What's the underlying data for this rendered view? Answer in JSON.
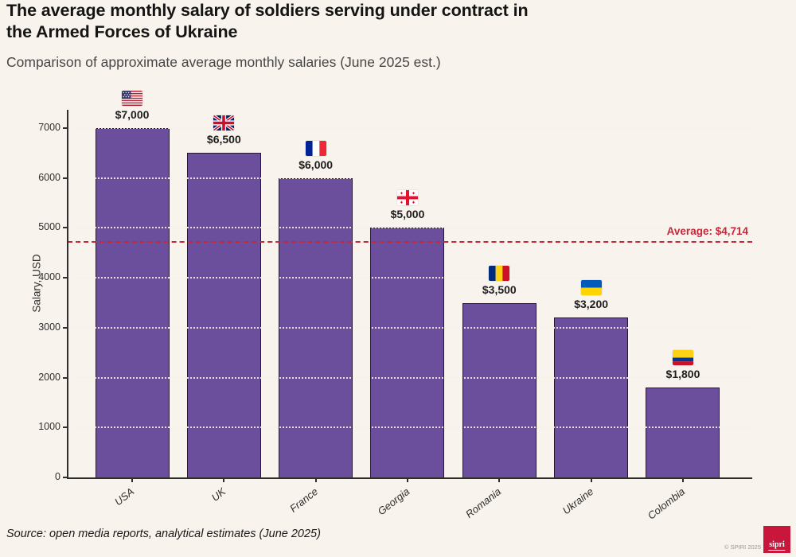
{
  "page": {
    "background": "#F8F3EC"
  },
  "chart_data": {
    "type": "bar",
    "title": "The average monthly salary of soldiers serving under contract in the Armed Forces of Ukraine",
    "subtitle": "Comparison of approximate average monthly salaries (June 2025 est.)",
    "ylabel": "Salary, USD",
    "xlabel": "",
    "ylim": [
      0,
      7500
    ],
    "yticks": [
      0,
      1000,
      2000,
      3000,
      4000,
      5000,
      6000,
      7000
    ],
    "grid": "horizontal-dotted",
    "legend": "none",
    "categories": [
      "USA",
      "UK",
      "France",
      "Georgia",
      "Romania",
      "Ukraine",
      "Colombia"
    ],
    "values": [
      7000,
      6500,
      6000,
      5000,
      3500,
      3200,
      1800
    ],
    "value_labels": [
      "$7,000",
      "$6,500",
      "$6,000",
      "$5,000",
      "$3,500",
      "$3,200",
      "$1,800"
    ],
    "flags": [
      "us",
      "uk",
      "fr",
      "ge",
      "ro",
      "ua",
      "co"
    ],
    "average_line": {
      "value": 4714,
      "label": "Average: $4,714",
      "style": "dashed"
    },
    "colors": {
      "bar": "#6C4F9C",
      "bar_border": "#241832",
      "average": "#C62839",
      "axis": "#2E2E2E"
    }
  },
  "footer": {
    "source": "Source: open media reports, analytical estimates (June 2025)",
    "copyright": "© SPIRI 2025",
    "logo_text": "sipri",
    "logo_color": "#C9173C"
  }
}
